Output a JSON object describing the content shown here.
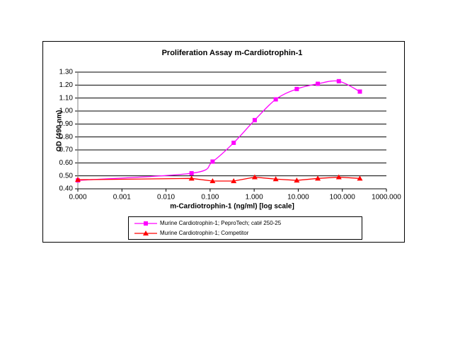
{
  "chart_data": {
    "type": "line",
    "title": "Proliferation Assay m-Cardiotrophin-1",
    "x_label": "m-Cardiotrophin-1 (ng/ml) [log scale]",
    "y_label": "OD (490 nm)",
    "x": [
      0.0001,
      0.038,
      0.114,
      0.343,
      1.03,
      3.09,
      9.26,
      27.8,
      83.3,
      250
    ],
    "series": [
      {
        "name": "Murine Cardiotrophin-1; PeproTech; cat# 250-25",
        "color": "#ff00ff",
        "marker": "square",
        "smooth": true,
        "values": [
          0.465,
          0.52,
          0.61,
          0.755,
          0.93,
          1.09,
          1.17,
          1.21,
          1.23,
          1.15
        ]
      },
      {
        "name": "Murine Cardiotrophin-1; Competitor",
        "color": "#ff0000",
        "marker": "triangle",
        "smooth": false,
        "values": [
          0.47,
          0.48,
          0.46,
          0.46,
          0.49,
          0.475,
          0.465,
          0.48,
          0.49,
          0.48
        ]
      }
    ],
    "xlim": [
      0.0001,
      1000
    ],
    "xticks": [
      {
        "value": 0.0001,
        "label": "0.000"
      },
      {
        "value": 0.001,
        "label": "0.001"
      },
      {
        "value": 0.01,
        "label": "0.010"
      },
      {
        "value": 0.1,
        "label": "0.100"
      },
      {
        "value": 1,
        "label": "1.000"
      },
      {
        "value": 10,
        "label": "10.000"
      },
      {
        "value": 100,
        "label": "100.000"
      },
      {
        "value": 1000,
        "label": "1000.000"
      }
    ],
    "ylim": [
      0.4,
      1.3
    ],
    "yticks": [
      {
        "value": 0.4,
        "label": "0.40"
      },
      {
        "value": 0.5,
        "label": "0.50"
      },
      {
        "value": 0.6,
        "label": "0.60"
      },
      {
        "value": 0.7,
        "label": "0.70"
      },
      {
        "value": 0.8,
        "label": "0.80"
      },
      {
        "value": 0.9,
        "label": "0.90"
      },
      {
        "value": 1.0,
        "label": "1.00"
      },
      {
        "value": 1.1,
        "label": "1.10"
      },
      {
        "value": 1.2,
        "label": "1.20"
      },
      {
        "value": 1.3,
        "label": "1.30"
      }
    ],
    "x_log": true,
    "grid": true,
    "legend": "bottom"
  }
}
